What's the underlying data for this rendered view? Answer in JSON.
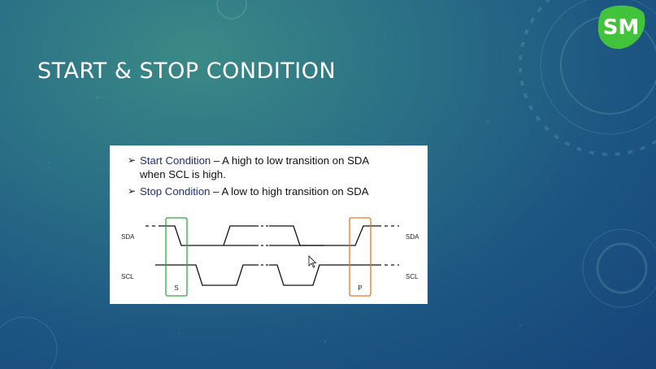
{
  "slide": {
    "title": "START & STOP CONDITION",
    "logo_text": "SM"
  },
  "content": {
    "bullets": [
      {
        "term": "Start Condition",
        "text_line1": " – A high to low transition on SDA",
        "text_line2": "when SCL is high."
      },
      {
        "term": "Stop Condition",
        "text_line1": " – A low to high transition on SDA",
        "text_line2": ""
      }
    ]
  },
  "diagram": {
    "signals": {
      "sda_left": "SDA",
      "sda_right": "SDA",
      "scl_left": "SCL",
      "scl_right": "SCL"
    },
    "markers": {
      "start": "S",
      "stop": "P"
    },
    "colors": {
      "start_box": "#2eaa3c",
      "stop_box": "#e07a2a",
      "trace": "#111111"
    }
  },
  "colors": {
    "logo_green": "#43c23c",
    "title": "#ffffff"
  }
}
